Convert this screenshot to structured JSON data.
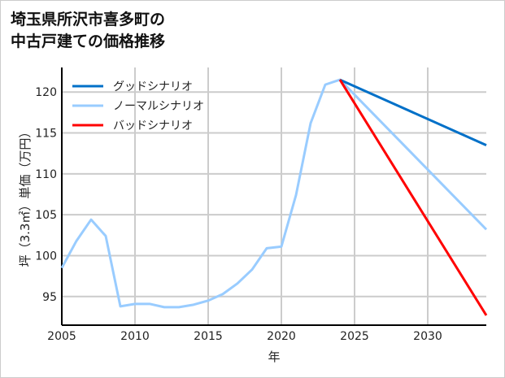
{
  "chart_data": {
    "type": "line",
    "title": [
      "埼玉県所沢市喜多町の",
      "中古戸建ての価格推移"
    ],
    "xlabel": "年",
    "ylabel": "坪（3.3㎡）単価（万円）",
    "xlim": [
      2005,
      2034
    ],
    "ylim": [
      91.5,
      123
    ],
    "xticks": [
      2005,
      2010,
      2015,
      2020,
      2025,
      2030
    ],
    "yticks": [
      95,
      100,
      105,
      110,
      115,
      120
    ],
    "grid": true,
    "legend_position": "top-left",
    "series": [
      {
        "name": "グッドシナリオ",
        "color": "#0070c8",
        "x": [
          2024,
          2034
        ],
        "y": [
          121.5,
          113.5
        ]
      },
      {
        "name": "ノーマルシナリオ",
        "color": "#99ccff",
        "x": [
          2005,
          2006,
          2007,
          2008,
          2009,
          2010,
          2011,
          2012,
          2013,
          2014,
          2015,
          2016,
          2017,
          2018,
          2019,
          2020,
          2021,
          2022,
          2023,
          2024,
          2034
        ],
        "y": [
          98.5,
          101.8,
          104.4,
          102.4,
          93.8,
          94.1,
          94.1,
          93.7,
          93.7,
          94.0,
          94.5,
          95.3,
          96.6,
          98.3,
          100.9,
          101.1,
          107.4,
          116.2,
          120.9,
          121.5,
          103.2
        ]
      },
      {
        "name": "バッドシナリオ",
        "color": "#ff0000",
        "x": [
          2024,
          2034
        ],
        "y": [
          121.5,
          92.7
        ]
      }
    ]
  }
}
